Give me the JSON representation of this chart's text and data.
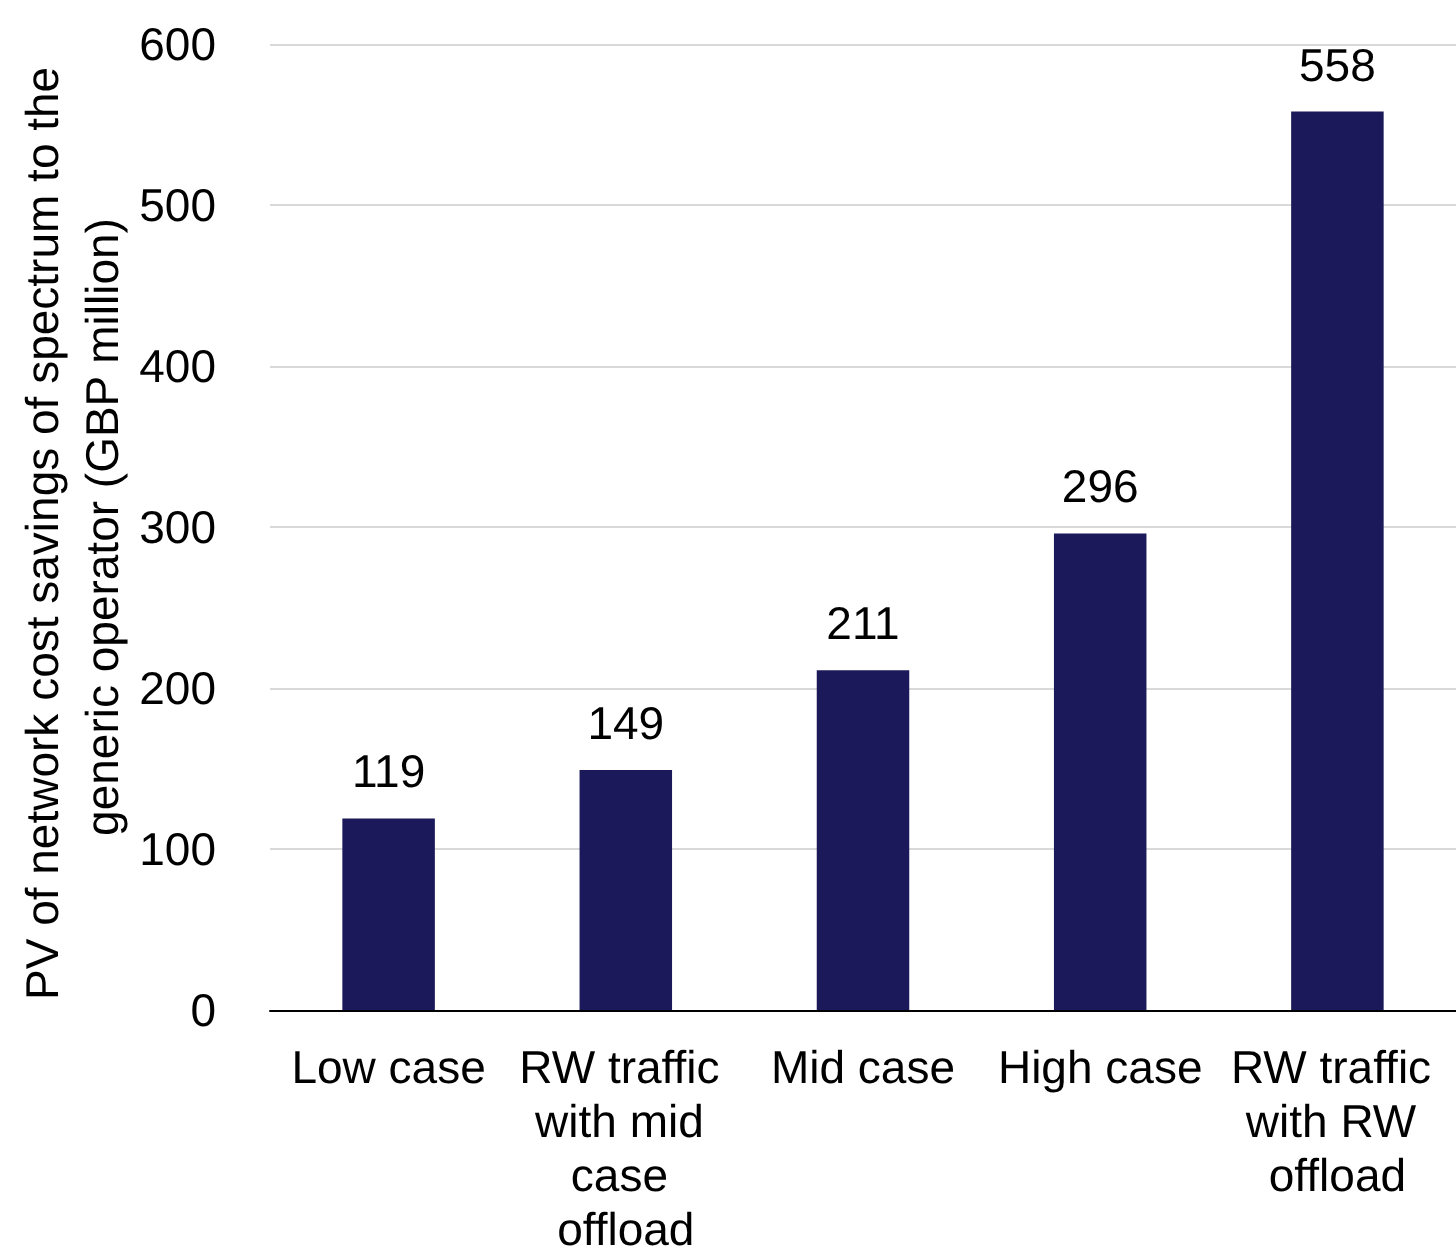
{
  "chart_data": {
    "type": "bar",
    "ylabel": "PV of network cost savings of spectrum to the generic operator (GBP million)",
    "categories": [
      "Low case",
      "RW traffic with mid case offload",
      "Mid case",
      "High case",
      "RW traffic with RW offload"
    ],
    "values": [
      119,
      149,
      211,
      296,
      558
    ],
    "color": "#1b1959",
    "ylim": [
      0,
      600
    ],
    "yticks": [
      0,
      100,
      200,
      300,
      400,
      500,
      600
    ],
    "grid": "y",
    "data_labels": true
  }
}
